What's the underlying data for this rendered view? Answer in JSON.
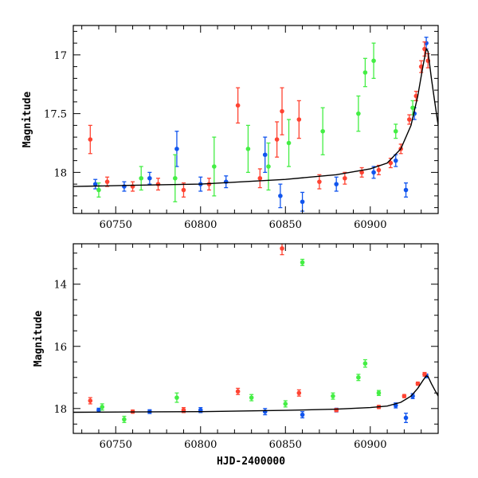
{
  "colors": {
    "red": "#ff4433",
    "green": "#44ee44",
    "blue": "#1155ee",
    "model": "#000000"
  },
  "chart_data": [
    {
      "type": "scatter",
      "panel": "top",
      "xlabel": "",
      "ylabel": "Magnitude",
      "xlim": [
        60725,
        60940
      ],
      "ylim": [
        18.35,
        16.75
      ],
      "y_inverted": true,
      "x_ticks": [
        60750,
        60800,
        60850,
        60900
      ],
      "x_tick_labels": [
        "60750",
        "60800",
        "60850",
        "60900"
      ],
      "y_ticks": [
        17,
        17.5,
        18
      ],
      "y_tick_labels": [
        "17",
        "17.5",
        "18"
      ],
      "series": [
        {
          "color": "red",
          "points": [
            {
              "x": 60735,
              "y": 17.72,
              "err": 0.12
            },
            {
              "x": 60745,
              "y": 18.08,
              "err": 0.04
            },
            {
              "x": 60760,
              "y": 18.12,
              "err": 0.04
            },
            {
              "x": 60775,
              "y": 18.1,
              "err": 0.05
            },
            {
              "x": 60790,
              "y": 18.15,
              "err": 0.06
            },
            {
              "x": 60805,
              "y": 18.1,
              "err": 0.05
            },
            {
              "x": 60822,
              "y": 17.43,
              "err": 0.15
            },
            {
              "x": 60835,
              "y": 18.05,
              "err": 0.08
            },
            {
              "x": 60845,
              "y": 17.72,
              "err": 0.15
            },
            {
              "x": 60848,
              "y": 17.48,
              "err": 0.2
            },
            {
              "x": 60858,
              "y": 17.55,
              "err": 0.16
            },
            {
              "x": 60870,
              "y": 18.08,
              "err": 0.06
            },
            {
              "x": 60885,
              "y": 18.05,
              "err": 0.05
            },
            {
              "x": 60895,
              "y": 18.0,
              "err": 0.04
            },
            {
              "x": 60905,
              "y": 17.98,
              "err": 0.04
            },
            {
              "x": 60912,
              "y": 17.92,
              "err": 0.04
            },
            {
              "x": 60918,
              "y": 17.8,
              "err": 0.04
            },
            {
              "x": 60923,
              "y": 17.55,
              "err": 0.04
            },
            {
              "x": 60927,
              "y": 17.35,
              "err": 0.04
            },
            {
              "x": 60930,
              "y": 17.1,
              "err": 0.05
            },
            {
              "x": 60932,
              "y": 16.95,
              "err": 0.06
            },
            {
              "x": 60934,
              "y": 17.05,
              "err": 0.06
            }
          ]
        },
        {
          "color": "green",
          "points": [
            {
              "x": 60740,
              "y": 18.15,
              "err": 0.06
            },
            {
              "x": 60765,
              "y": 18.05,
              "err": 0.1
            },
            {
              "x": 60785,
              "y": 18.05,
              "err": 0.2
            },
            {
              "x": 60808,
              "y": 17.95,
              "err": 0.25
            },
            {
              "x": 60828,
              "y": 17.8,
              "err": 0.2
            },
            {
              "x": 60840,
              "y": 17.95,
              "err": 0.2
            },
            {
              "x": 60852,
              "y": 17.75,
              "err": 0.2
            },
            {
              "x": 60872,
              "y": 17.65,
              "err": 0.2
            },
            {
              "x": 60893,
              "y": 17.5,
              "err": 0.15
            },
            {
              "x": 60897,
              "y": 17.15,
              "err": 0.12
            },
            {
              "x": 60902,
              "y": 17.05,
              "err": 0.15
            },
            {
              "x": 60915,
              "y": 17.65,
              "err": 0.06
            },
            {
              "x": 60925,
              "y": 17.45,
              "err": 0.06
            }
          ]
        },
        {
          "color": "blue",
          "points": [
            {
              "x": 60738,
              "y": 18.1,
              "err": 0.04
            },
            {
              "x": 60755,
              "y": 18.12,
              "err": 0.04
            },
            {
              "x": 60770,
              "y": 18.05,
              "err": 0.05
            },
            {
              "x": 60786,
              "y": 17.8,
              "err": 0.15
            },
            {
              "x": 60800,
              "y": 18.1,
              "err": 0.06
            },
            {
              "x": 60815,
              "y": 18.08,
              "err": 0.05
            },
            {
              "x": 60838,
              "y": 17.85,
              "err": 0.15
            },
            {
              "x": 60847,
              "y": 18.2,
              "err": 0.1
            },
            {
              "x": 60860,
              "y": 18.25,
              "err": 0.08
            },
            {
              "x": 60880,
              "y": 18.1,
              "err": 0.06
            },
            {
              "x": 60902,
              "y": 18.0,
              "err": 0.05
            },
            {
              "x": 60915,
              "y": 17.9,
              "err": 0.05
            },
            {
              "x": 60921,
              "y": 18.15,
              "err": 0.06
            },
            {
              "x": 60926,
              "y": 17.5,
              "err": 0.05
            },
            {
              "x": 60933,
              "y": 16.9,
              "err": 0.05
            }
          ]
        }
      ],
      "model_curve": {
        "color": "model",
        "x": [
          60725,
          60760,
          60800,
          60850,
          60880,
          60900,
          60910,
          60918,
          60924,
          60928,
          60931,
          60933,
          60934,
          60936,
          60938,
          60940
        ],
        "y": [
          18.12,
          18.11,
          18.1,
          18.06,
          18.02,
          17.97,
          17.92,
          17.8,
          17.6,
          17.35,
          17.1,
          16.95,
          16.97,
          17.2,
          17.4,
          17.6
        ]
      }
    },
    {
      "type": "scatter",
      "panel": "bottom",
      "xlabel": "HJD-2400000",
      "ylabel": "Magnitude",
      "xlim": [
        60725,
        60940
      ],
      "ylim": [
        18.8,
        12.7
      ],
      "y_inverted": true,
      "x_ticks": [
        60750,
        60800,
        60850,
        60900
      ],
      "x_tick_labels": [
        "60750",
        "60800",
        "60850",
        "60900"
      ],
      "y_ticks": [
        14,
        16,
        18
      ],
      "y_tick_labels": [
        "14",
        "16",
        "18"
      ],
      "series": [
        {
          "color": "red",
          "points": [
            {
              "x": 60735,
              "y": 17.75,
              "err": 0.1
            },
            {
              "x": 60760,
              "y": 18.1,
              "err": 0.05
            },
            {
              "x": 60790,
              "y": 18.05,
              "err": 0.08
            },
            {
              "x": 60822,
              "y": 17.45,
              "err": 0.1
            },
            {
              "x": 60848,
              "y": 12.85,
              "err": 0.2
            },
            {
              "x": 60858,
              "y": 17.5,
              "err": 0.1
            },
            {
              "x": 60880,
              "y": 18.05,
              "err": 0.05
            },
            {
              "x": 60905,
              "y": 17.95,
              "err": 0.05
            },
            {
              "x": 60920,
              "y": 17.6,
              "err": 0.05
            },
            {
              "x": 60928,
              "y": 17.2,
              "err": 0.05
            },
            {
              "x": 60932,
              "y": 16.9,
              "err": 0.06
            }
          ]
        },
        {
          "color": "green",
          "points": [
            {
              "x": 60742,
              "y": 17.95,
              "err": 0.1
            },
            {
              "x": 60755,
              "y": 18.35,
              "err": 0.1
            },
            {
              "x": 60786,
              "y": 17.65,
              "err": 0.15
            },
            {
              "x": 60830,
              "y": 17.65,
              "err": 0.1
            },
            {
              "x": 60850,
              "y": 17.85,
              "err": 0.1
            },
            {
              "x": 60860,
              "y": 13.3,
              "err": 0.1
            },
            {
              "x": 60878,
              "y": 17.6,
              "err": 0.1
            },
            {
              "x": 60893,
              "y": 17.0,
              "err": 0.1
            },
            {
              "x": 60897,
              "y": 16.55,
              "err": 0.12
            },
            {
              "x": 60905,
              "y": 17.5,
              "err": 0.08
            }
          ]
        },
        {
          "color": "blue",
          "points": [
            {
              "x": 60740,
              "y": 18.05,
              "err": 0.06
            },
            {
              "x": 60770,
              "y": 18.1,
              "err": 0.06
            },
            {
              "x": 60800,
              "y": 18.05,
              "err": 0.08
            },
            {
              "x": 60838,
              "y": 18.1,
              "err": 0.1
            },
            {
              "x": 60860,
              "y": 18.2,
              "err": 0.1
            },
            {
              "x": 60880,
              "y": 18.05,
              "err": 0.06
            },
            {
              "x": 60915,
              "y": 17.9,
              "err": 0.08
            },
            {
              "x": 60921,
              "y": 18.3,
              "err": 0.15
            },
            {
              "x": 60925,
              "y": 17.6,
              "err": 0.08
            },
            {
              "x": 60933,
              "y": 16.95,
              "err": 0.06
            }
          ]
        }
      ],
      "model_curve": {
        "color": "model",
        "x": [
          60725,
          60760,
          60800,
          60850,
          60880,
          60900,
          60910,
          60918,
          60924,
          60928,
          60931,
          60933,
          60934,
          60936,
          60938,
          60940
        ],
        "y": [
          18.12,
          18.11,
          18.1,
          18.06,
          18.02,
          17.97,
          17.92,
          17.8,
          17.6,
          17.35,
          17.1,
          16.95,
          16.97,
          17.2,
          17.4,
          17.6
        ]
      }
    }
  ]
}
